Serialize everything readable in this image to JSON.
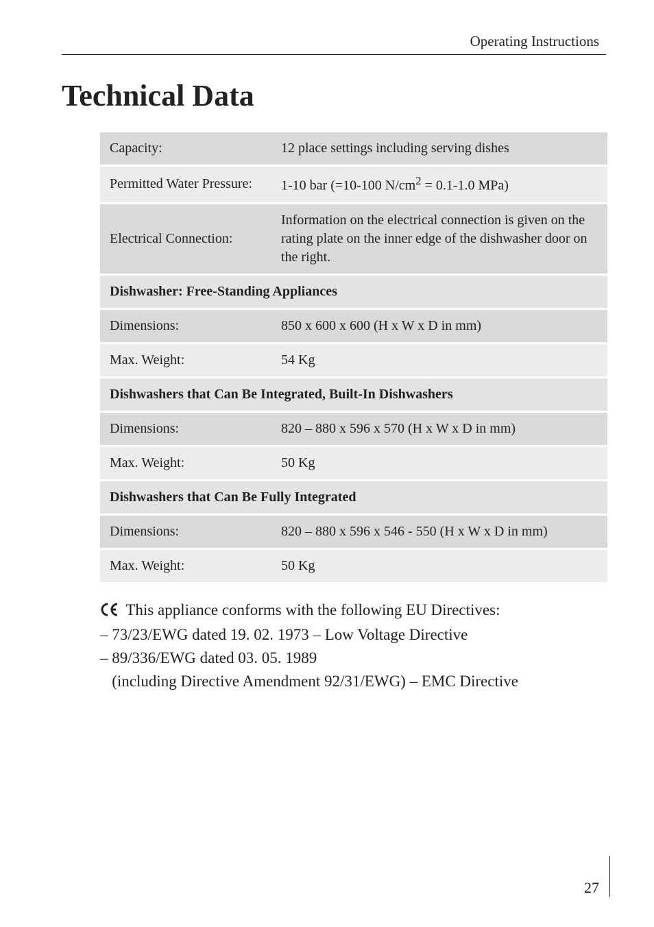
{
  "header": {
    "running": "Operating Instructions"
  },
  "title": "Technical Data",
  "table": {
    "rows": [
      {
        "label": "Capacity:",
        "value": "12 place settings including serving dishes",
        "shade": "dark"
      },
      {
        "label": "Permitted Water Pressure:",
        "value_html": "1-10 bar (=10-100 N/cm<sup>2</sup> = 0.1-1.0 MPa)",
        "shade": "light"
      },
      {
        "label": "Electrical Connection:",
        "value": "Information on the electrical connection is given on the rating plate on the inner edge of the dishwasher door on the right.",
        "shade": "dark"
      },
      {
        "section": "Dishwasher: Free-Standing Appliances"
      },
      {
        "label": "Dimensions:",
        "value": "850 x 600 x 600 (H x W x D in mm)",
        "shade": "dark"
      },
      {
        "label": "Max. Weight:",
        "value": "54 Kg",
        "shade": "light"
      },
      {
        "section": "Dishwashers that Can Be Integrated, Built-In Dishwashers"
      },
      {
        "label": "Dimensions:",
        "value": "820 – 880 x 596 x 570 (H x W x D in mm)",
        "shade": "dark"
      },
      {
        "label": "Max. Weight:",
        "value": "50 Kg",
        "shade": "light"
      },
      {
        "section": "Dishwashers that Can Be Fully Integrated"
      },
      {
        "label": "Dimensions:",
        "value": "820 – 880 x 596 x 546 - 550 (H x W x D in mm)",
        "shade": "dark"
      },
      {
        "label": "Max. Weight:",
        "value": "50 Kg",
        "shade": "light"
      }
    ]
  },
  "directives": {
    "intro": "This appliance conforms with the following EU Directives:",
    "items": [
      "– 73/23/EWG dated 19. 02. 1973 – Low Voltage Directive",
      "– 89/336/EWG dated 03. 05. 1989",
      "   (including Directive Amendment 92/31/EWG) – EMC Directive"
    ]
  },
  "page_number": "27",
  "colors": {
    "row_dark": "#d9d9d9",
    "row_light": "#ececec",
    "row_head": "#e3e3e3",
    "text": "#222222",
    "bg": "#ffffff"
  }
}
